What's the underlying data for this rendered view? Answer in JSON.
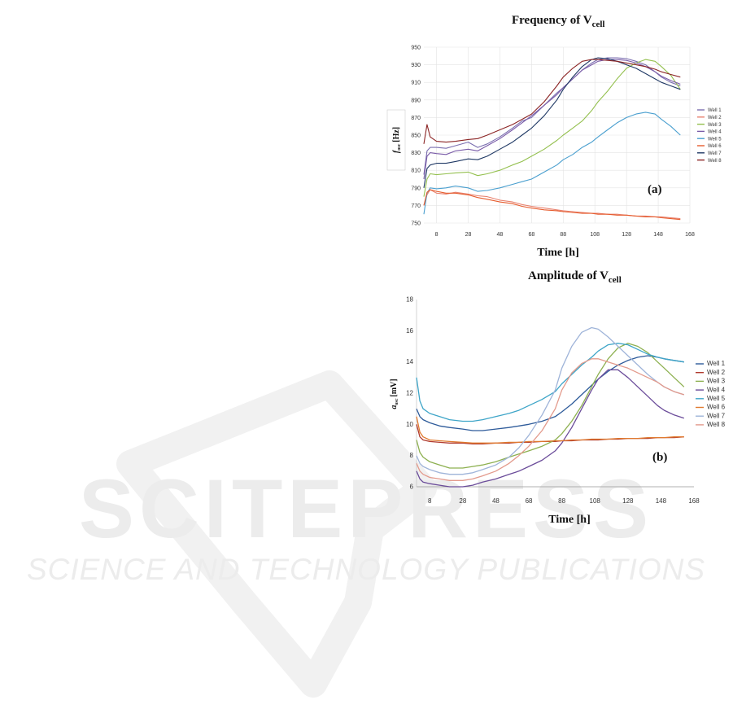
{
  "watermark": {
    "brand": "SCITEPRESS",
    "tagline": "SCIENCE AND TECHNOLOGY PUBLICATIONS"
  },
  "chart_data": [
    {
      "id": "a",
      "type": "line",
      "title_main": "Frequency of V",
      "title_sub": "cell",
      "xlabel": "Time [h]",
      "ylabel_main": "f",
      "ylabel_sub": "osc",
      "ylabel_unit": "[Hz]",
      "panel_tag": "(a)",
      "xlim": [
        0,
        168
      ],
      "ylim": [
        750,
        950
      ],
      "xticks": [
        8,
        28,
        48,
        68,
        88,
        108,
        128,
        148,
        168
      ],
      "yticks": [
        750,
        770,
        790,
        810,
        830,
        850,
        870,
        890,
        910,
        930,
        950
      ],
      "grid": true,
      "legend": "right",
      "x": [
        0,
        2,
        4,
        8,
        14,
        20,
        28,
        34,
        40,
        48,
        56,
        62,
        68,
        76,
        84,
        88,
        94,
        100,
        106,
        110,
        116,
        122,
        128,
        134,
        140,
        146,
        150,
        156,
        162
      ],
      "series": [
        {
          "name": "Well 1",
          "color": "#7b6fb0",
          "values": [
            805,
            832,
            836,
            836,
            835,
            838,
            842,
            836,
            840,
            848,
            858,
            866,
            870,
            884,
            898,
            904,
            914,
            924,
            932,
            936,
            938,
            938,
            937,
            934,
            930,
            922,
            916,
            910,
            906
          ]
        },
        {
          "name": "Well 2",
          "color": "#e8826f",
          "values": [
            770,
            782,
            788,
            784,
            783,
            785,
            783,
            781,
            780,
            776,
            774,
            771,
            769,
            767,
            765,
            764,
            763,
            762,
            761,
            761,
            760,
            760,
            759,
            758,
            758,
            757,
            757,
            756,
            755
          ]
        },
        {
          "name": "Well 3",
          "color": "#94c04f",
          "values": [
            780,
            800,
            806,
            805,
            806,
            807,
            808,
            804,
            806,
            810,
            816,
            820,
            826,
            834,
            844,
            850,
            858,
            866,
            878,
            888,
            900,
            914,
            926,
            932,
            936,
            934,
            928,
            918,
            902
          ]
        },
        {
          "name": "Well 4",
          "color": "#7a5ca8",
          "values": [
            800,
            826,
            830,
            829,
            828,
            832,
            834,
            832,
            838,
            846,
            856,
            864,
            872,
            884,
            896,
            904,
            914,
            924,
            930,
            934,
            936,
            936,
            935,
            932,
            928,
            922,
            917,
            912,
            908
          ]
        },
        {
          "name": "Well 5",
          "color": "#4a9fcf",
          "values": [
            760,
            784,
            790,
            789,
            790,
            792,
            790,
            786,
            787,
            790,
            794,
            797,
            800,
            808,
            816,
            822,
            828,
            836,
            842,
            848,
            856,
            864,
            870,
            874,
            876,
            874,
            868,
            860,
            850
          ]
        },
        {
          "name": "Well 6",
          "color": "#e65c2e",
          "values": [
            770,
            785,
            788,
            786,
            784,
            784,
            782,
            779,
            777,
            774,
            772,
            769,
            767,
            765,
            764,
            763,
            762,
            761,
            761,
            760,
            760,
            759,
            759,
            758,
            757,
            757,
            756,
            755,
            754
          ]
        },
        {
          "name": "Well 7",
          "color": "#1f3864",
          "values": [
            790,
            812,
            816,
            818,
            818,
            820,
            823,
            822,
            826,
            834,
            842,
            850,
            858,
            872,
            890,
            902,
            916,
            928,
            936,
            938,
            937,
            934,
            930,
            926,
            920,
            914,
            910,
            906,
            902
          ]
        },
        {
          "name": "Well 8",
          "color": "#8b2424",
          "values": [
            840,
            862,
            848,
            843,
            842,
            843,
            845,
            846,
            850,
            856,
            862,
            868,
            874,
            888,
            906,
            916,
            926,
            934,
            936,
            936,
            935,
            934,
            932,
            930,
            928,
            925,
            922,
            919,
            916
          ]
        }
      ]
    },
    {
      "id": "b",
      "type": "line",
      "title_main": "Amplitude of V",
      "title_sub": "cell",
      "xlabel": "Time [h]",
      "ylabel_main": "a",
      "ylabel_sub": "osc",
      "ylabel_unit": "[mV]",
      "panel_tag": "(b)",
      "xlim": [
        0,
        168
      ],
      "ylim": [
        6,
        18
      ],
      "xticks": [
        8,
        28,
        48,
        68,
        88,
        108,
        128,
        148,
        168
      ],
      "yticks": [
        6,
        8,
        10,
        12,
        14,
        16,
        18
      ],
      "grid": false,
      "legend": "right",
      "x": [
        0,
        2,
        4,
        8,
        14,
        20,
        28,
        34,
        40,
        48,
        56,
        62,
        68,
        76,
        84,
        88,
        94,
        100,
        106,
        110,
        116,
        122,
        128,
        134,
        140,
        146,
        150,
        156,
        162
      ],
      "series": [
        {
          "name": "Well 1",
          "color": "#2e5b9a",
          "values": [
            11.0,
            10.5,
            10.3,
            10.1,
            9.9,
            9.8,
            9.7,
            9.6,
            9.6,
            9.7,
            9.8,
            9.9,
            10.0,
            10.2,
            10.5,
            10.8,
            11.3,
            11.9,
            12.5,
            12.9,
            13.4,
            13.8,
            14.1,
            14.3,
            14.4,
            14.3,
            14.2,
            14.1,
            14.0
          ]
        },
        {
          "name": "Well 2",
          "color": "#b03a2e",
          "values": [
            10.0,
            9.2,
            9.0,
            8.9,
            8.85,
            8.8,
            8.8,
            8.75,
            8.75,
            8.8,
            8.8,
            8.85,
            8.85,
            8.9,
            8.9,
            8.95,
            8.95,
            9.0,
            9.0,
            9.0,
            9.05,
            9.05,
            9.1,
            9.1,
            9.1,
            9.15,
            9.15,
            9.15,
            9.2
          ]
        },
        {
          "name": "Well 3",
          "color": "#8db050",
          "values": [
            9.0,
            8.2,
            7.9,
            7.6,
            7.4,
            7.2,
            7.2,
            7.3,
            7.4,
            7.6,
            7.9,
            8.1,
            8.3,
            8.6,
            9.0,
            9.4,
            10.2,
            11.2,
            12.4,
            13.2,
            14.2,
            14.9,
            15.2,
            15.0,
            14.6,
            14.0,
            13.6,
            13.0,
            12.4
          ]
        },
        {
          "name": "Well 4",
          "color": "#6b4c9a",
          "values": [
            7.0,
            6.5,
            6.3,
            6.2,
            6.1,
            6.0,
            6.0,
            6.1,
            6.3,
            6.5,
            6.8,
            7.0,
            7.3,
            7.7,
            8.3,
            8.8,
            9.8,
            11.0,
            12.2,
            12.9,
            13.5,
            13.5,
            13.0,
            12.4,
            11.8,
            11.2,
            10.9,
            10.6,
            10.4
          ]
        },
        {
          "name": "Well 5",
          "color": "#3ea5c8",
          "values": [
            13.0,
            11.5,
            11.0,
            10.7,
            10.5,
            10.3,
            10.2,
            10.2,
            10.3,
            10.5,
            10.7,
            10.9,
            11.2,
            11.6,
            12.1,
            12.6,
            13.2,
            13.8,
            14.3,
            14.7,
            15.1,
            15.2,
            15.1,
            14.8,
            14.5,
            14.3,
            14.2,
            14.1,
            14.0
          ]
        },
        {
          "name": "Well 6",
          "color": "#e07a2f",
          "values": [
            10.5,
            9.5,
            9.2,
            9.0,
            8.95,
            8.9,
            8.85,
            8.8,
            8.8,
            8.8,
            8.85,
            8.85,
            8.9,
            8.9,
            8.95,
            8.95,
            9.0,
            9.0,
            9.05,
            9.05,
            9.05,
            9.1,
            9.1,
            9.1,
            9.15,
            9.15,
            9.15,
            9.2,
            9.2
          ]
        },
        {
          "name": "Well 7",
          "color": "#9fb4d9",
          "values": [
            8.0,
            7.5,
            7.3,
            7.1,
            6.9,
            6.8,
            6.8,
            6.9,
            7.1,
            7.4,
            7.9,
            8.5,
            9.3,
            10.6,
            12.2,
            13.6,
            15.0,
            15.9,
            16.2,
            16.1,
            15.6,
            15.0,
            14.4,
            13.8,
            13.2,
            12.7,
            12.4,
            12.1,
            11.9
          ]
        },
        {
          "name": "Well 8",
          "color": "#e39a8c",
          "values": [
            7.5,
            7.0,
            6.8,
            6.6,
            6.5,
            6.4,
            6.4,
            6.5,
            6.7,
            7.0,
            7.5,
            8.0,
            8.6,
            9.6,
            11.0,
            12.2,
            13.3,
            13.9,
            14.2,
            14.2,
            14.0,
            13.8,
            13.6,
            13.3,
            13.0,
            12.7,
            12.4,
            12.1,
            11.9
          ]
        }
      ]
    }
  ]
}
